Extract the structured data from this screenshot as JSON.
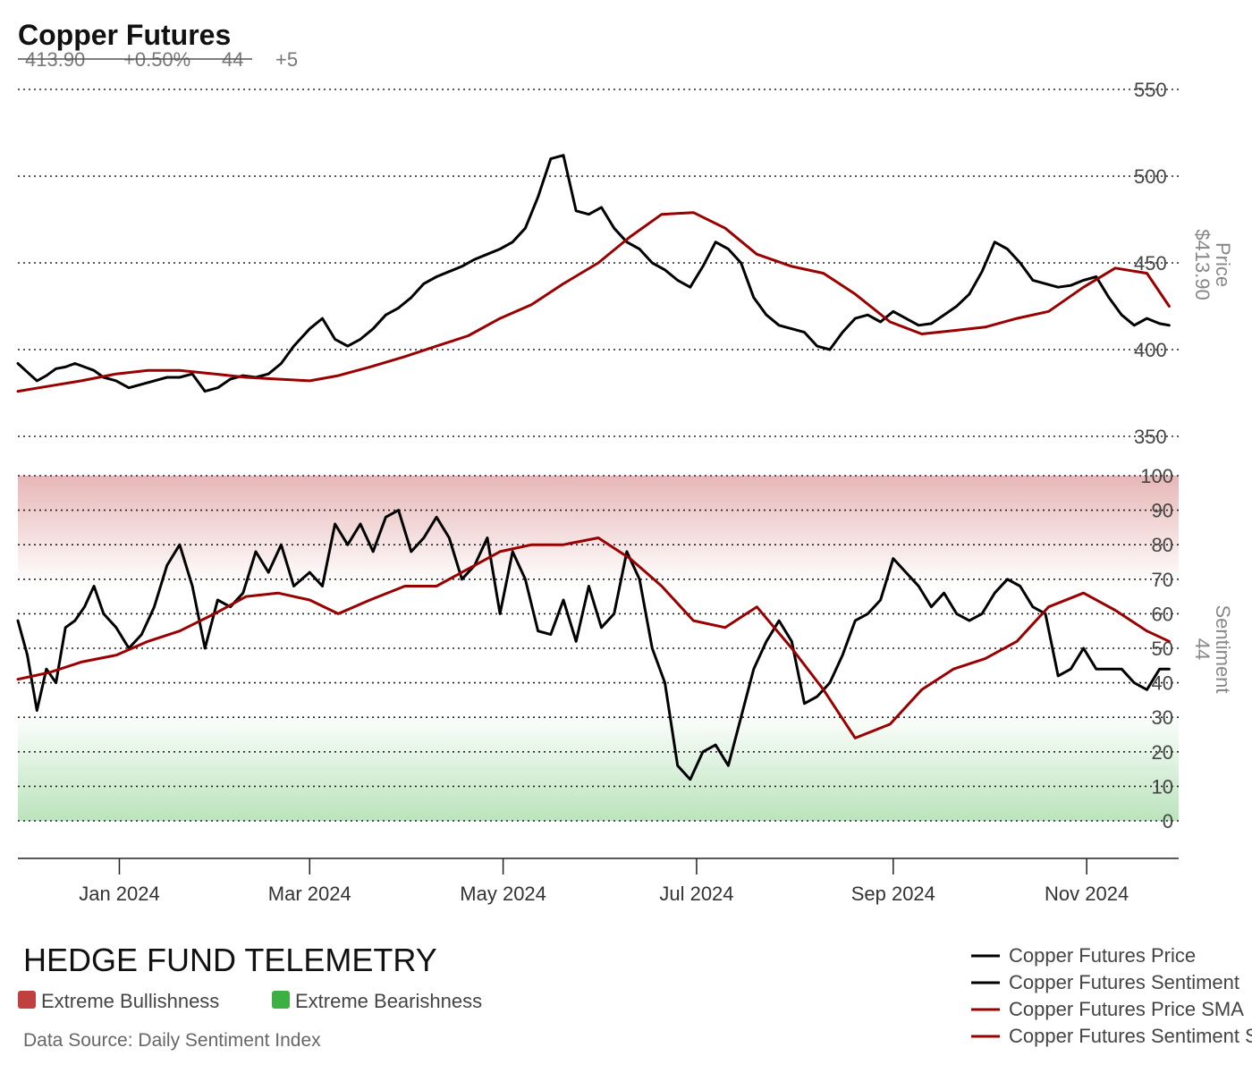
{
  "header": {
    "title": "Copper Futures",
    "stat_price": "413.90",
    "stat_change": "+0.50%",
    "stat_sentiment": "44",
    "stat_delta": "+5"
  },
  "colors": {
    "price_line": "#000000",
    "sentiment_line": "#000000",
    "sma_line": "#990000",
    "extreme_bullish": "#c04040",
    "extreme_bearish": "#3cb043"
  },
  "footer": {
    "brand": "HEDGE FUND TELEMETRY",
    "key_bullish": "Extreme Bullishness",
    "key_bearish": "Extreme Bearishness",
    "source": "Data Source: Daily Sentiment Index"
  },
  "chart_data": [
    {
      "type": "line",
      "title": "Copper Futures",
      "ylabel": "Price",
      "last_value_label": "$413.90",
      "yticks": [
        350,
        400,
        450,
        500,
        550
      ],
      "ylim": [
        350,
        550
      ],
      "grid": true,
      "xtick_labels": [
        "Jan 2024",
        "Mar 2024",
        "May 2024",
        "Jul 2024",
        "Sep 2024",
        "Nov 2024"
      ],
      "xtick_dates": [
        "2024-01-01",
        "2024-03-01",
        "2024-05-01",
        "2024-07-01",
        "2024-09-01",
        "2024-11-01"
      ],
      "x_range": [
        "2023-11-30",
        "2024-11-30"
      ],
      "series": [
        {
          "name": "Copper Futures Price",
          "color": "#000000",
          "x": [
            "2023-11-30",
            "2023-12-03",
            "2023-12-06",
            "2023-12-09",
            "2023-12-12",
            "2023-12-15",
            "2023-12-18",
            "2023-12-21",
            "2023-12-24",
            "2023-12-27",
            "2023-12-31",
            "2024-01-04",
            "2024-01-08",
            "2024-01-12",
            "2024-01-16",
            "2024-01-20",
            "2024-01-24",
            "2024-01-28",
            "2024-02-01",
            "2024-02-05",
            "2024-02-09",
            "2024-02-13",
            "2024-02-17",
            "2024-02-21",
            "2024-02-25",
            "2024-03-01",
            "2024-03-05",
            "2024-03-09",
            "2024-03-13",
            "2024-03-17",
            "2024-03-21",
            "2024-03-25",
            "2024-03-29",
            "2024-04-02",
            "2024-04-06",
            "2024-04-10",
            "2024-04-14",
            "2024-04-18",
            "2024-04-22",
            "2024-04-26",
            "2024-04-30",
            "2024-05-04",
            "2024-05-08",
            "2024-05-12",
            "2024-05-16",
            "2024-05-20",
            "2024-05-24",
            "2024-05-28",
            "2024-06-01",
            "2024-06-05",
            "2024-06-09",
            "2024-06-13",
            "2024-06-17",
            "2024-06-21",
            "2024-06-25",
            "2024-06-29",
            "2024-07-03",
            "2024-07-07",
            "2024-07-11",
            "2024-07-15",
            "2024-07-19",
            "2024-07-23",
            "2024-07-27",
            "2024-07-31",
            "2024-08-04",
            "2024-08-08",
            "2024-08-12",
            "2024-08-16",
            "2024-08-20",
            "2024-08-24",
            "2024-08-28",
            "2024-09-01",
            "2024-09-05",
            "2024-09-09",
            "2024-09-13",
            "2024-09-17",
            "2024-09-21",
            "2024-09-25",
            "2024-09-29",
            "2024-10-03",
            "2024-10-07",
            "2024-10-11",
            "2024-10-15",
            "2024-10-19",
            "2024-10-23",
            "2024-10-27",
            "2024-10-31",
            "2024-11-04",
            "2024-11-08",
            "2024-11-12",
            "2024-11-16",
            "2024-11-20",
            "2024-11-24",
            "2024-11-27"
          ],
          "values": [
            392,
            387,
            382,
            385,
            389,
            390,
            392,
            390,
            388,
            384,
            382,
            378,
            380,
            382,
            384,
            384,
            386,
            376,
            378,
            383,
            385,
            384,
            386,
            392,
            402,
            412,
            418,
            406,
            402,
            406,
            412,
            420,
            424,
            430,
            438,
            442,
            445,
            448,
            452,
            455,
            458,
            462,
            470,
            488,
            510,
            512,
            480,
            478,
            482,
            470,
            462,
            458,
            450,
            446,
            440,
            436,
            448,
            462,
            458,
            450,
            430,
            420,
            414,
            412,
            410,
            402,
            400,
            410,
            418,
            420,
            416,
            422,
            418,
            414,
            415,
            420,
            425,
            432,
            445,
            462,
            458,
            450,
            440,
            438,
            436,
            437,
            440,
            442,
            430,
            420,
            414,
            418,
            415,
            414
          ],
          "last_label": "$413.90"
        },
        {
          "name": "Copper Futures Price SMA",
          "color": "#990000",
          "x": [
            "2023-11-30",
            "2023-12-10",
            "2023-12-20",
            "2023-12-31",
            "2024-01-10",
            "2024-01-20",
            "2024-01-31",
            "2024-02-10",
            "2024-02-20",
            "2024-03-01",
            "2024-03-10",
            "2024-03-20",
            "2024-03-31",
            "2024-04-10",
            "2024-04-20",
            "2024-04-30",
            "2024-05-10",
            "2024-05-20",
            "2024-05-31",
            "2024-06-10",
            "2024-06-20",
            "2024-06-30",
            "2024-07-10",
            "2024-07-20",
            "2024-07-31",
            "2024-08-10",
            "2024-08-20",
            "2024-08-31",
            "2024-09-10",
            "2024-09-20",
            "2024-09-30",
            "2024-10-10",
            "2024-10-20",
            "2024-10-31",
            "2024-11-10",
            "2024-11-20",
            "2024-11-27"
          ],
          "values": [
            376,
            379,
            382,
            386,
            388,
            388,
            386,
            384,
            383,
            382,
            385,
            390,
            396,
            402,
            408,
            418,
            426,
            438,
            450,
            465,
            478,
            479,
            470,
            455,
            448,
            444,
            432,
            416,
            409,
            411,
            413,
            418,
            422,
            436,
            447,
            444,
            425
          ]
        }
      ]
    },
    {
      "type": "line",
      "ylabel": "Sentiment",
      "last_value_label": "44",
      "yticks": [
        0,
        10,
        20,
        30,
        40,
        50,
        60,
        70,
        80,
        90,
        100
      ],
      "ylim": [
        0,
        100
      ],
      "grid": true,
      "zones": [
        {
          "label": "Extreme Bullishness",
          "from": 70,
          "to": 100,
          "color": "#c04040"
        },
        {
          "label": "Extreme Bearishness",
          "from": 0,
          "to": 30,
          "color": "#3cb043"
        }
      ],
      "x_range": [
        "2023-11-30",
        "2024-11-30"
      ],
      "series": [
        {
          "name": "Copper Futures Sentiment",
          "color": "#000000",
          "x": [
            "2023-11-30",
            "2023-12-03",
            "2023-12-06",
            "2023-12-09",
            "2023-12-12",
            "2023-12-15",
            "2023-12-18",
            "2023-12-21",
            "2023-12-24",
            "2023-12-27",
            "2023-12-31",
            "2024-01-04",
            "2024-01-08",
            "2024-01-12",
            "2024-01-16",
            "2024-01-20",
            "2024-01-24",
            "2024-01-28",
            "2024-02-01",
            "2024-02-05",
            "2024-02-09",
            "2024-02-13",
            "2024-02-17",
            "2024-02-21",
            "2024-02-25",
            "2024-03-01",
            "2024-03-05",
            "2024-03-09",
            "2024-03-13",
            "2024-03-17",
            "2024-03-21",
            "2024-03-25",
            "2024-03-29",
            "2024-04-02",
            "2024-04-06",
            "2024-04-10",
            "2024-04-14",
            "2024-04-18",
            "2024-04-22",
            "2024-04-26",
            "2024-04-30",
            "2024-05-04",
            "2024-05-08",
            "2024-05-12",
            "2024-05-16",
            "2024-05-20",
            "2024-05-24",
            "2024-05-28",
            "2024-06-01",
            "2024-06-05",
            "2024-06-09",
            "2024-06-13",
            "2024-06-17",
            "2024-06-21",
            "2024-06-25",
            "2024-06-29",
            "2024-07-03",
            "2024-07-07",
            "2024-07-11",
            "2024-07-15",
            "2024-07-19",
            "2024-07-23",
            "2024-07-27",
            "2024-07-31",
            "2024-08-04",
            "2024-08-08",
            "2024-08-12",
            "2024-08-16",
            "2024-08-20",
            "2024-08-24",
            "2024-08-28",
            "2024-09-01",
            "2024-09-05",
            "2024-09-09",
            "2024-09-13",
            "2024-09-17",
            "2024-09-21",
            "2024-09-25",
            "2024-09-29",
            "2024-10-03",
            "2024-10-07",
            "2024-10-11",
            "2024-10-15",
            "2024-10-19",
            "2024-10-23",
            "2024-10-27",
            "2024-10-31",
            "2024-11-04",
            "2024-11-08",
            "2024-11-12",
            "2024-11-16",
            "2024-11-20",
            "2024-11-24",
            "2024-11-27"
          ],
          "values": [
            58,
            48,
            32,
            44,
            40,
            56,
            58,
            62,
            68,
            60,
            56,
            50,
            54,
            62,
            74,
            80,
            68,
            50,
            64,
            62,
            66,
            78,
            72,
            80,
            68,
            72,
            68,
            86,
            80,
            86,
            78,
            88,
            90,
            78,
            82,
            88,
            82,
            70,
            74,
            82,
            60,
            78,
            70,
            55,
            54,
            64,
            52,
            68,
            56,
            60,
            78,
            70,
            50,
            40,
            16,
            12,
            20,
            22,
            16,
            30,
            44,
            52,
            58,
            52,
            34,
            36,
            40,
            48,
            58,
            60,
            64,
            76,
            72,
            68,
            62,
            66,
            60,
            58,
            60,
            66,
            70,
            68,
            62,
            60,
            42,
            44,
            50,
            44,
            44,
            44,
            40,
            38,
            44,
            44
          ],
          "last_label": "44"
        },
        {
          "name": "Copper Futures Sentiment SMA",
          "color": "#990000",
          "x": [
            "2023-11-30",
            "2023-12-10",
            "2023-12-20",
            "2023-12-31",
            "2024-01-10",
            "2024-01-20",
            "2024-01-31",
            "2024-02-10",
            "2024-02-20",
            "2024-03-01",
            "2024-03-10",
            "2024-03-20",
            "2024-03-31",
            "2024-04-10",
            "2024-04-20",
            "2024-04-30",
            "2024-05-10",
            "2024-05-20",
            "2024-05-31",
            "2024-06-10",
            "2024-06-20",
            "2024-06-30",
            "2024-07-10",
            "2024-07-20",
            "2024-07-31",
            "2024-08-10",
            "2024-08-20",
            "2024-08-31",
            "2024-09-10",
            "2024-09-20",
            "2024-09-30",
            "2024-10-10",
            "2024-10-20",
            "2024-10-31",
            "2024-11-10",
            "2024-11-20",
            "2024-11-27"
          ],
          "values": [
            41,
            43,
            46,
            48,
            52,
            55,
            60,
            65,
            66,
            64,
            60,
            64,
            68,
            68,
            73,
            78,
            80,
            80,
            82,
            76,
            68,
            58,
            56,
            62,
            50,
            38,
            24,
            28,
            38,
            44,
            47,
            52,
            62,
            66,
            61,
            55,
            52
          ]
        }
      ]
    }
  ],
  "legend": [
    {
      "label": "Copper Futures Price",
      "color": "#000000"
    },
    {
      "label": "Copper Futures Sentiment",
      "color": "#000000"
    },
    {
      "label": "Copper Futures Price SMA",
      "color": "#990000"
    },
    {
      "label": "Copper Futures Sentiment SMA",
      "color": "#990000"
    }
  ]
}
